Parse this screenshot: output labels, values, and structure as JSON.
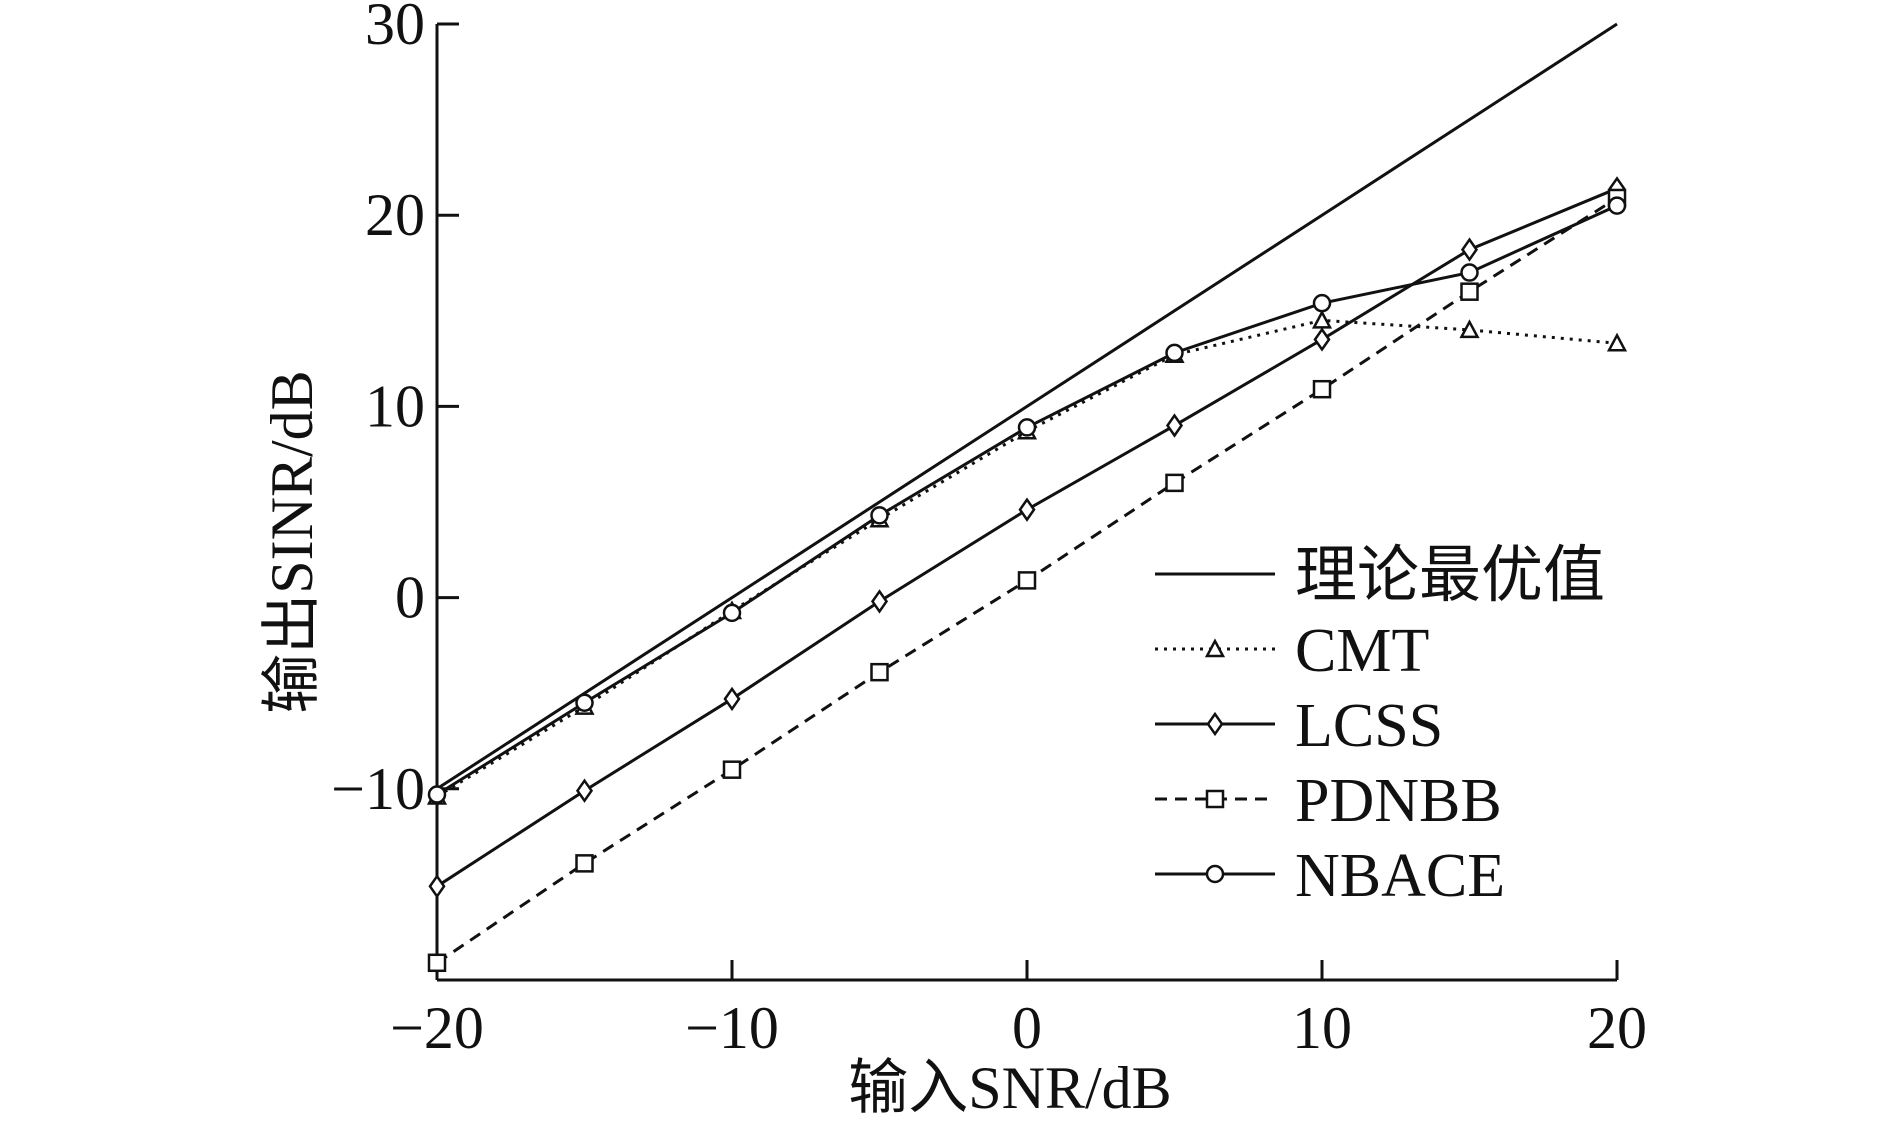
{
  "chart_data": {
    "type": "line",
    "title": "",
    "xlabel": "输入SNR/dB",
    "ylabel": "输出SINR/dB",
    "xlim": [
      -20,
      20
    ],
    "ylim": [
      -20,
      30
    ],
    "x_ticks": [
      -20,
      -10,
      0,
      10,
      20
    ],
    "y_ticks": [
      -10,
      0,
      10,
      20,
      30
    ],
    "x_tick_labels": [
      "−20",
      "−10",
      "0",
      "10",
      "20"
    ],
    "y_tick_labels": [
      "−10",
      "0",
      "10",
      "20",
      "30"
    ],
    "grid": false,
    "legend_position": "lower-right",
    "x": [
      -20,
      -15,
      -10,
      -5,
      0,
      5,
      10,
      15,
      20
    ],
    "series": [
      {
        "name": "理论最优值",
        "marker": "none",
        "dash": "solid",
        "values": [
          -10,
          -5,
          0,
          5,
          10,
          15,
          20,
          25,
          30
        ]
      },
      {
        "name": "CMT",
        "marker": "triangle",
        "dash": "dotted",
        "values": [
          -10.4,
          -5.7,
          -0.7,
          4.1,
          8.7,
          12.7,
          14.5,
          14.0,
          13.3
        ]
      },
      {
        "name": "LCSS",
        "marker": "diamond",
        "dash": "solid",
        "values": [
          -15.1,
          -10.1,
          -5.3,
          -0.2,
          4.6,
          9.0,
          13.5,
          18.2,
          21.4
        ]
      },
      {
        "name": "PDNBB",
        "marker": "square",
        "dash": "dashed",
        "values": [
          -19.1,
          -13.9,
          -9.0,
          -3.9,
          0.9,
          6.0,
          10.9,
          16.0,
          20.9
        ]
      },
      {
        "name": "NBACE",
        "marker": "circle",
        "dash": "solid",
        "values": [
          -10.3,
          -5.5,
          -0.8,
          4.3,
          8.9,
          12.8,
          15.4,
          17.0,
          20.5
        ]
      }
    ]
  }
}
